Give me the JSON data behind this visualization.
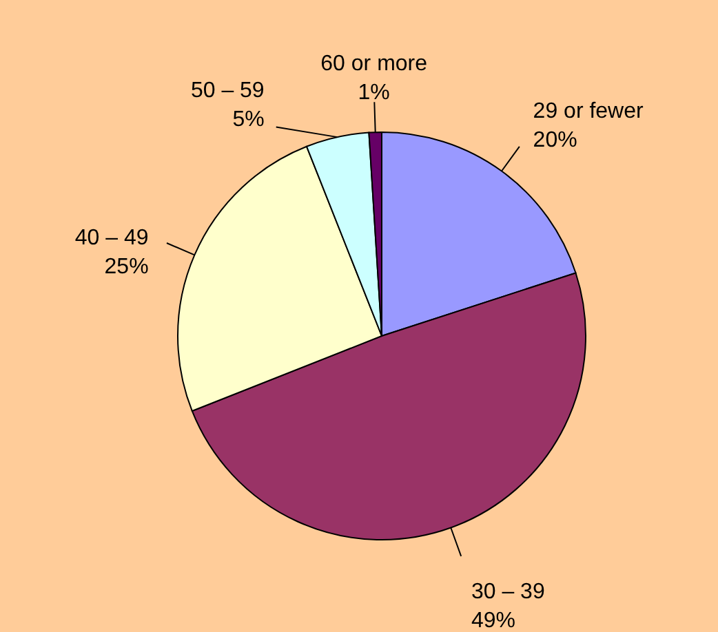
{
  "chart_data": {
    "type": "pie",
    "categories": [
      "29 or fewer",
      "30 – 39",
      "40 – 49",
      "50 – 59",
      "60 or more"
    ],
    "values": [
      20,
      49,
      25,
      5,
      1
    ],
    "value_labels": [
      "20%",
      "49%",
      "25%",
      "5%",
      "1%"
    ],
    "colors": [
      "#9999ff",
      "#993366",
      "#ffffcc",
      "#ccffff",
      "#660066"
    ]
  }
}
